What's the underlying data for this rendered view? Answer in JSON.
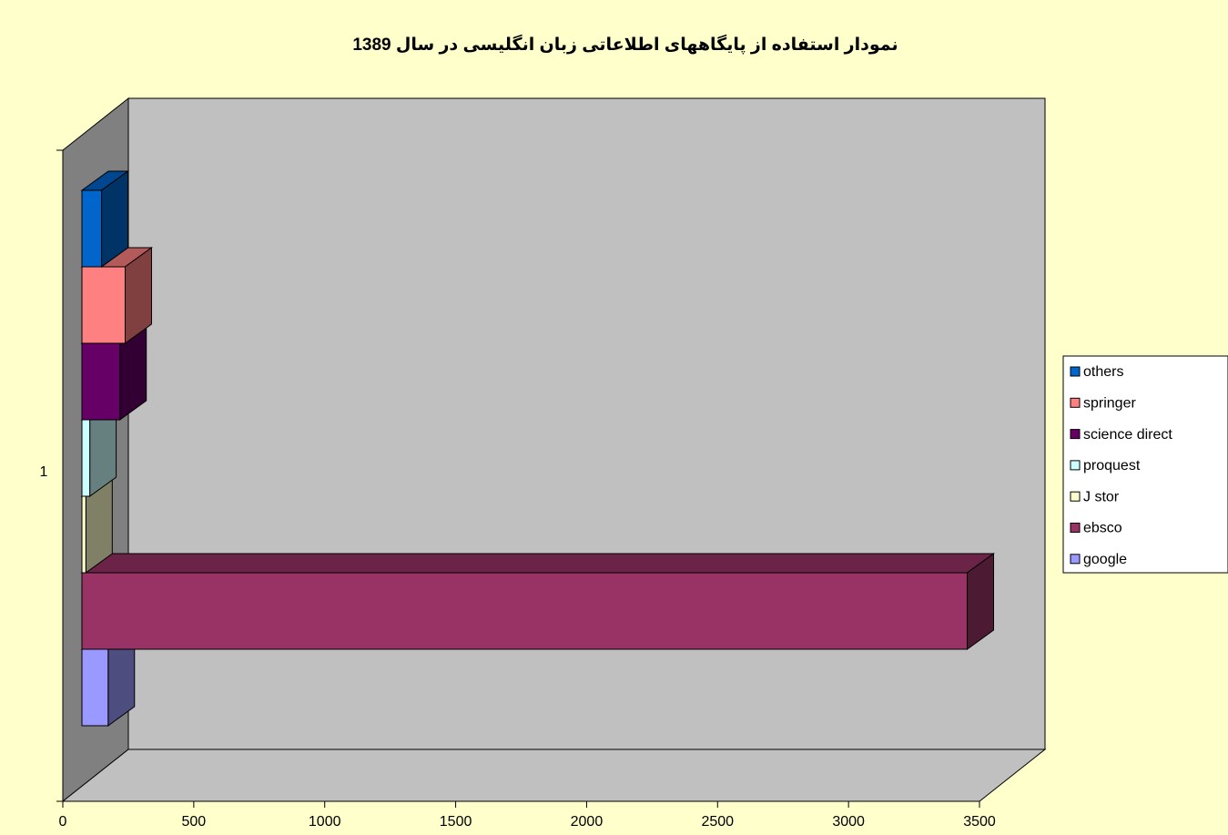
{
  "chart_data": {
    "type": "bar3d_horizontal",
    "title": "نمودار استفاده از پایگاههای اطلاعاتی زبان انگلیسی در سال 1389",
    "categories": [
      "1"
    ],
    "series": [
      {
        "name": "google",
        "color": "#9999ff",
        "values": [
          100
        ]
      },
      {
        "name": "ebsco",
        "color": "#993366",
        "values": [
          3380
        ]
      },
      {
        "name": "J stor",
        "color": "#ffffcc",
        "values": [
          15
        ]
      },
      {
        "name": "proquest",
        "color": "#ccffff",
        "values": [
          30
        ]
      },
      {
        "name": "science direct",
        "color": "#660066",
        "values": [
          145
        ]
      },
      {
        "name": "springer",
        "color": "#ff8080",
        "values": [
          165
        ]
      },
      {
        "name": "others",
        "color": "#0066cc",
        "values": [
          75
        ]
      }
    ],
    "xlim": [
      0,
      3500
    ],
    "xticks": [
      0,
      500,
      1000,
      1500,
      2000,
      2500,
      3000,
      3500
    ],
    "legend": "right"
  }
}
